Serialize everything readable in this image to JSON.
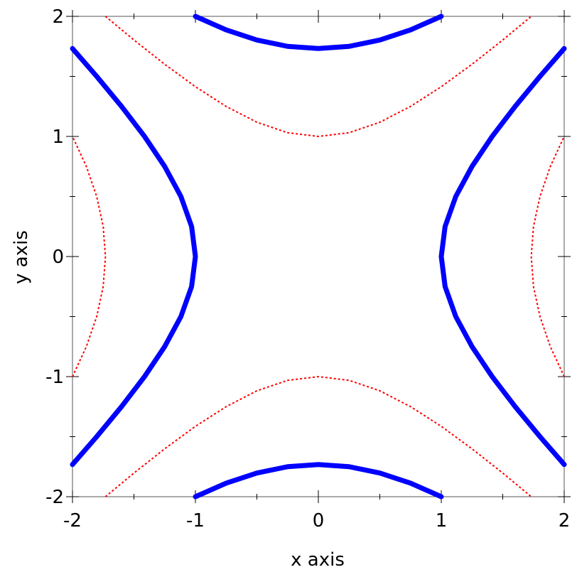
{
  "chart_data": {
    "type": "line",
    "xlabel": "x axis",
    "ylabel": "y axis",
    "xlim": [
      -2,
      2
    ],
    "ylim": [
      -2,
      2
    ],
    "xticks": [
      -2,
      -1,
      0,
      1,
      2
    ],
    "yticks": [
      -2,
      -1,
      0,
      1,
      2
    ],
    "xminorticks": [
      -1.5,
      -0.5,
      0.5,
      1.5
    ],
    "yminorticks": [
      -1.5,
      -0.5,
      0.5,
      1.5
    ],
    "series": [
      {
        "color": "#0000ff",
        "line_width": 7,
        "dashed": false,
        "x": [
          2,
          1.803,
          1.601,
          1.414,
          1.25,
          1.118,
          1.031,
          1,
          1.031,
          1.118,
          1.25,
          1.414,
          1.601,
          1.803,
          2,
          null,
          -2,
          -1.803,
          -1.601,
          -1.414,
          -1.25,
          -1.118,
          -1.031,
          -1,
          -1.031,
          -1.118,
          -1.25,
          -1.414,
          -1.601,
          -1.803,
          -2,
          null,
          -1,
          -0.75,
          -0.5,
          -0.25,
          0,
          0.25,
          0.5,
          0.75,
          1,
          null,
          -1,
          -0.75,
          -0.5,
          -0.25,
          0,
          0.25,
          0.5,
          0.75,
          1
        ],
        "values": [
          -1.732,
          -1.5,
          -1.25,
          -1,
          -0.75,
          -0.5,
          -0.25,
          0,
          0.25,
          0.5,
          0.75,
          1,
          1.25,
          1.5,
          1.732,
          null,
          -1.732,
          -1.5,
          -1.25,
          -1,
          -0.75,
          -0.5,
          -0.25,
          0,
          0.25,
          0.5,
          0.75,
          1,
          1.25,
          1.5,
          1.732,
          null,
          2,
          1.887,
          1.803,
          1.75,
          1.732,
          1.75,
          1.803,
          1.887,
          2,
          null,
          -2,
          -1.887,
          -1.803,
          -1.75,
          -1.732,
          -1.75,
          -1.803,
          -1.887,
          -2
        ]
      },
      {
        "color": "#ff0000",
        "line_width": 2,
        "dashed": true,
        "x": [
          -1.732,
          -1.5,
          -1.25,
          -1,
          -0.75,
          -0.5,
          -0.25,
          0,
          0.25,
          0.5,
          0.75,
          1,
          1.25,
          1.5,
          1.732,
          null,
          -1.732,
          -1.5,
          -1.25,
          -1,
          -0.75,
          -0.5,
          -0.25,
          0,
          0.25,
          0.5,
          0.75,
          1,
          1.25,
          1.5,
          1.732,
          null,
          2,
          1.887,
          1.803,
          1.75,
          1.732,
          1.75,
          1.803,
          1.887,
          2,
          null,
          -2,
          -1.887,
          -1.803,
          -1.75,
          -1.732,
          -1.75,
          -1.803,
          -1.887,
          -2
        ],
        "values": [
          2,
          1.803,
          1.601,
          1.414,
          1.25,
          1.118,
          1.031,
          1,
          1.031,
          1.118,
          1.25,
          1.414,
          1.601,
          1.803,
          2,
          null,
          -2,
          -1.803,
          -1.601,
          -1.414,
          -1.25,
          -1.118,
          -1.031,
          -1,
          -1.031,
          -1.118,
          -1.25,
          -1.414,
          -1.601,
          -1.803,
          -2,
          null,
          -1,
          -0.75,
          -0.5,
          -0.25,
          0,
          0.25,
          0.5,
          0.75,
          1,
          null,
          -1,
          -0.75,
          -0.5,
          -0.25,
          0,
          0.25,
          0.5,
          0.75,
          1
        ]
      }
    ]
  }
}
